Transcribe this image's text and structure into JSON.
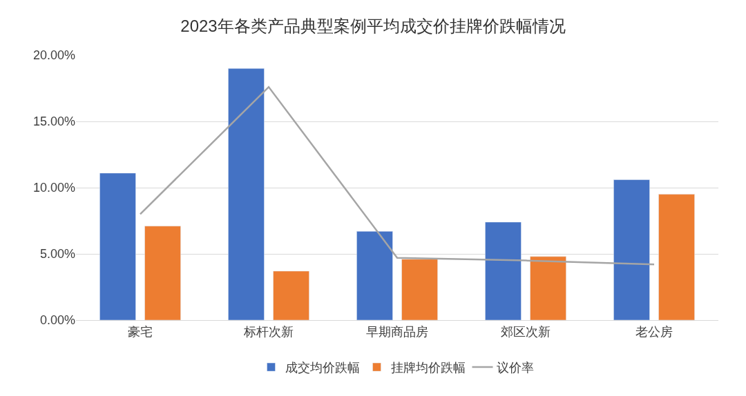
{
  "chart_data": {
    "type": "bar",
    "title": "2023年各类产品典型案例平均成交价挂牌价跌幅情况",
    "categories": [
      "豪宅",
      "标杆次新",
      "早期商品房",
      "郊区次新",
      "老公房"
    ],
    "series": [
      {
        "name": "成交均价跌幅",
        "color": "#4472c4",
        "values": [
          11.1,
          19.0,
          6.7,
          7.4,
          10.6
        ]
      },
      {
        "name": "挂牌均价跌幅",
        "color": "#ed7d31",
        "values": [
          7.1,
          3.7,
          4.6,
          4.8,
          9.5
        ]
      },
      {
        "name": "议价率",
        "type": "line",
        "color": "#a5a5a5",
        "marker": "none",
        "values": [
          8.0,
          17.6,
          4.7,
          4.5,
          4.2
        ]
      }
    ],
    "ylim": [
      0,
      20
    ],
    "yticks": [
      {
        "value": 0,
        "label": "0.00%"
      },
      {
        "value": 5,
        "label": "5.00%"
      },
      {
        "value": 10,
        "label": "10.00%"
      },
      {
        "value": 15,
        "label": "15.00%"
      },
      {
        "value": 20,
        "label": "20.00%"
      }
    ],
    "grid": "y",
    "legend": "bottom"
  }
}
